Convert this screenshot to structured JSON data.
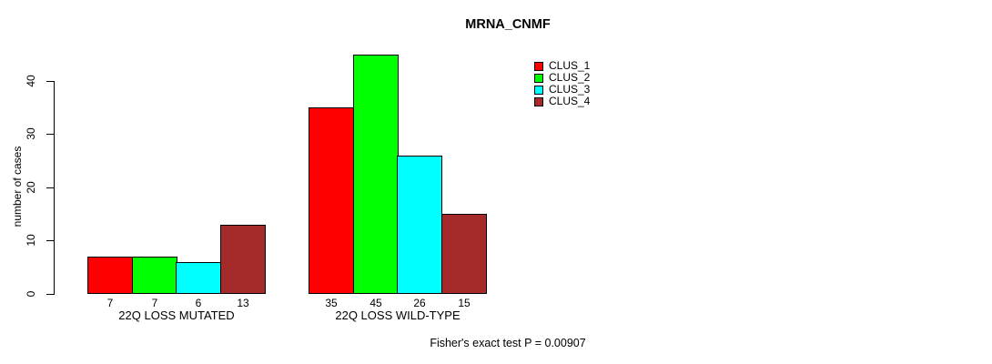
{
  "title": "MRNA_CNMF",
  "ylabel": "number of cases",
  "footer": "Fisher's exact test P = 0.00907",
  "chart_data": {
    "type": "bar",
    "title": "MRNA_CNMF",
    "xlabel": "",
    "ylabel": "number of cases",
    "categories": [
      "22Q LOSS MUTATED",
      "22Q LOSS WILD-TYPE"
    ],
    "series": [
      {
        "name": "CLUS_1",
        "color": "#FF0000",
        "values": [
          7,
          35
        ]
      },
      {
        "name": "CLUS_2",
        "color": "#00FF00",
        "values": [
          7,
          45
        ]
      },
      {
        "name": "CLUS_3",
        "color": "#00FFFF",
        "values": [
          6,
          26
        ]
      },
      {
        "name": "CLUS_4",
        "color": "#A52A2A",
        "values": [
          13,
          15
        ]
      }
    ],
    "bar_value_labels": [
      [
        7,
        7,
        6,
        13
      ],
      [
        35,
        45,
        26,
        15
      ]
    ],
    "yticks": [
      0,
      10,
      20,
      30,
      40
    ],
    "ylim": [
      0,
      45
    ],
    "grid": false,
    "legend_position": "top-right",
    "annotation": "Fisher's exact test P = 0.00907",
    "bar_border_color": "#000000",
    "axis_color": "#000000"
  }
}
